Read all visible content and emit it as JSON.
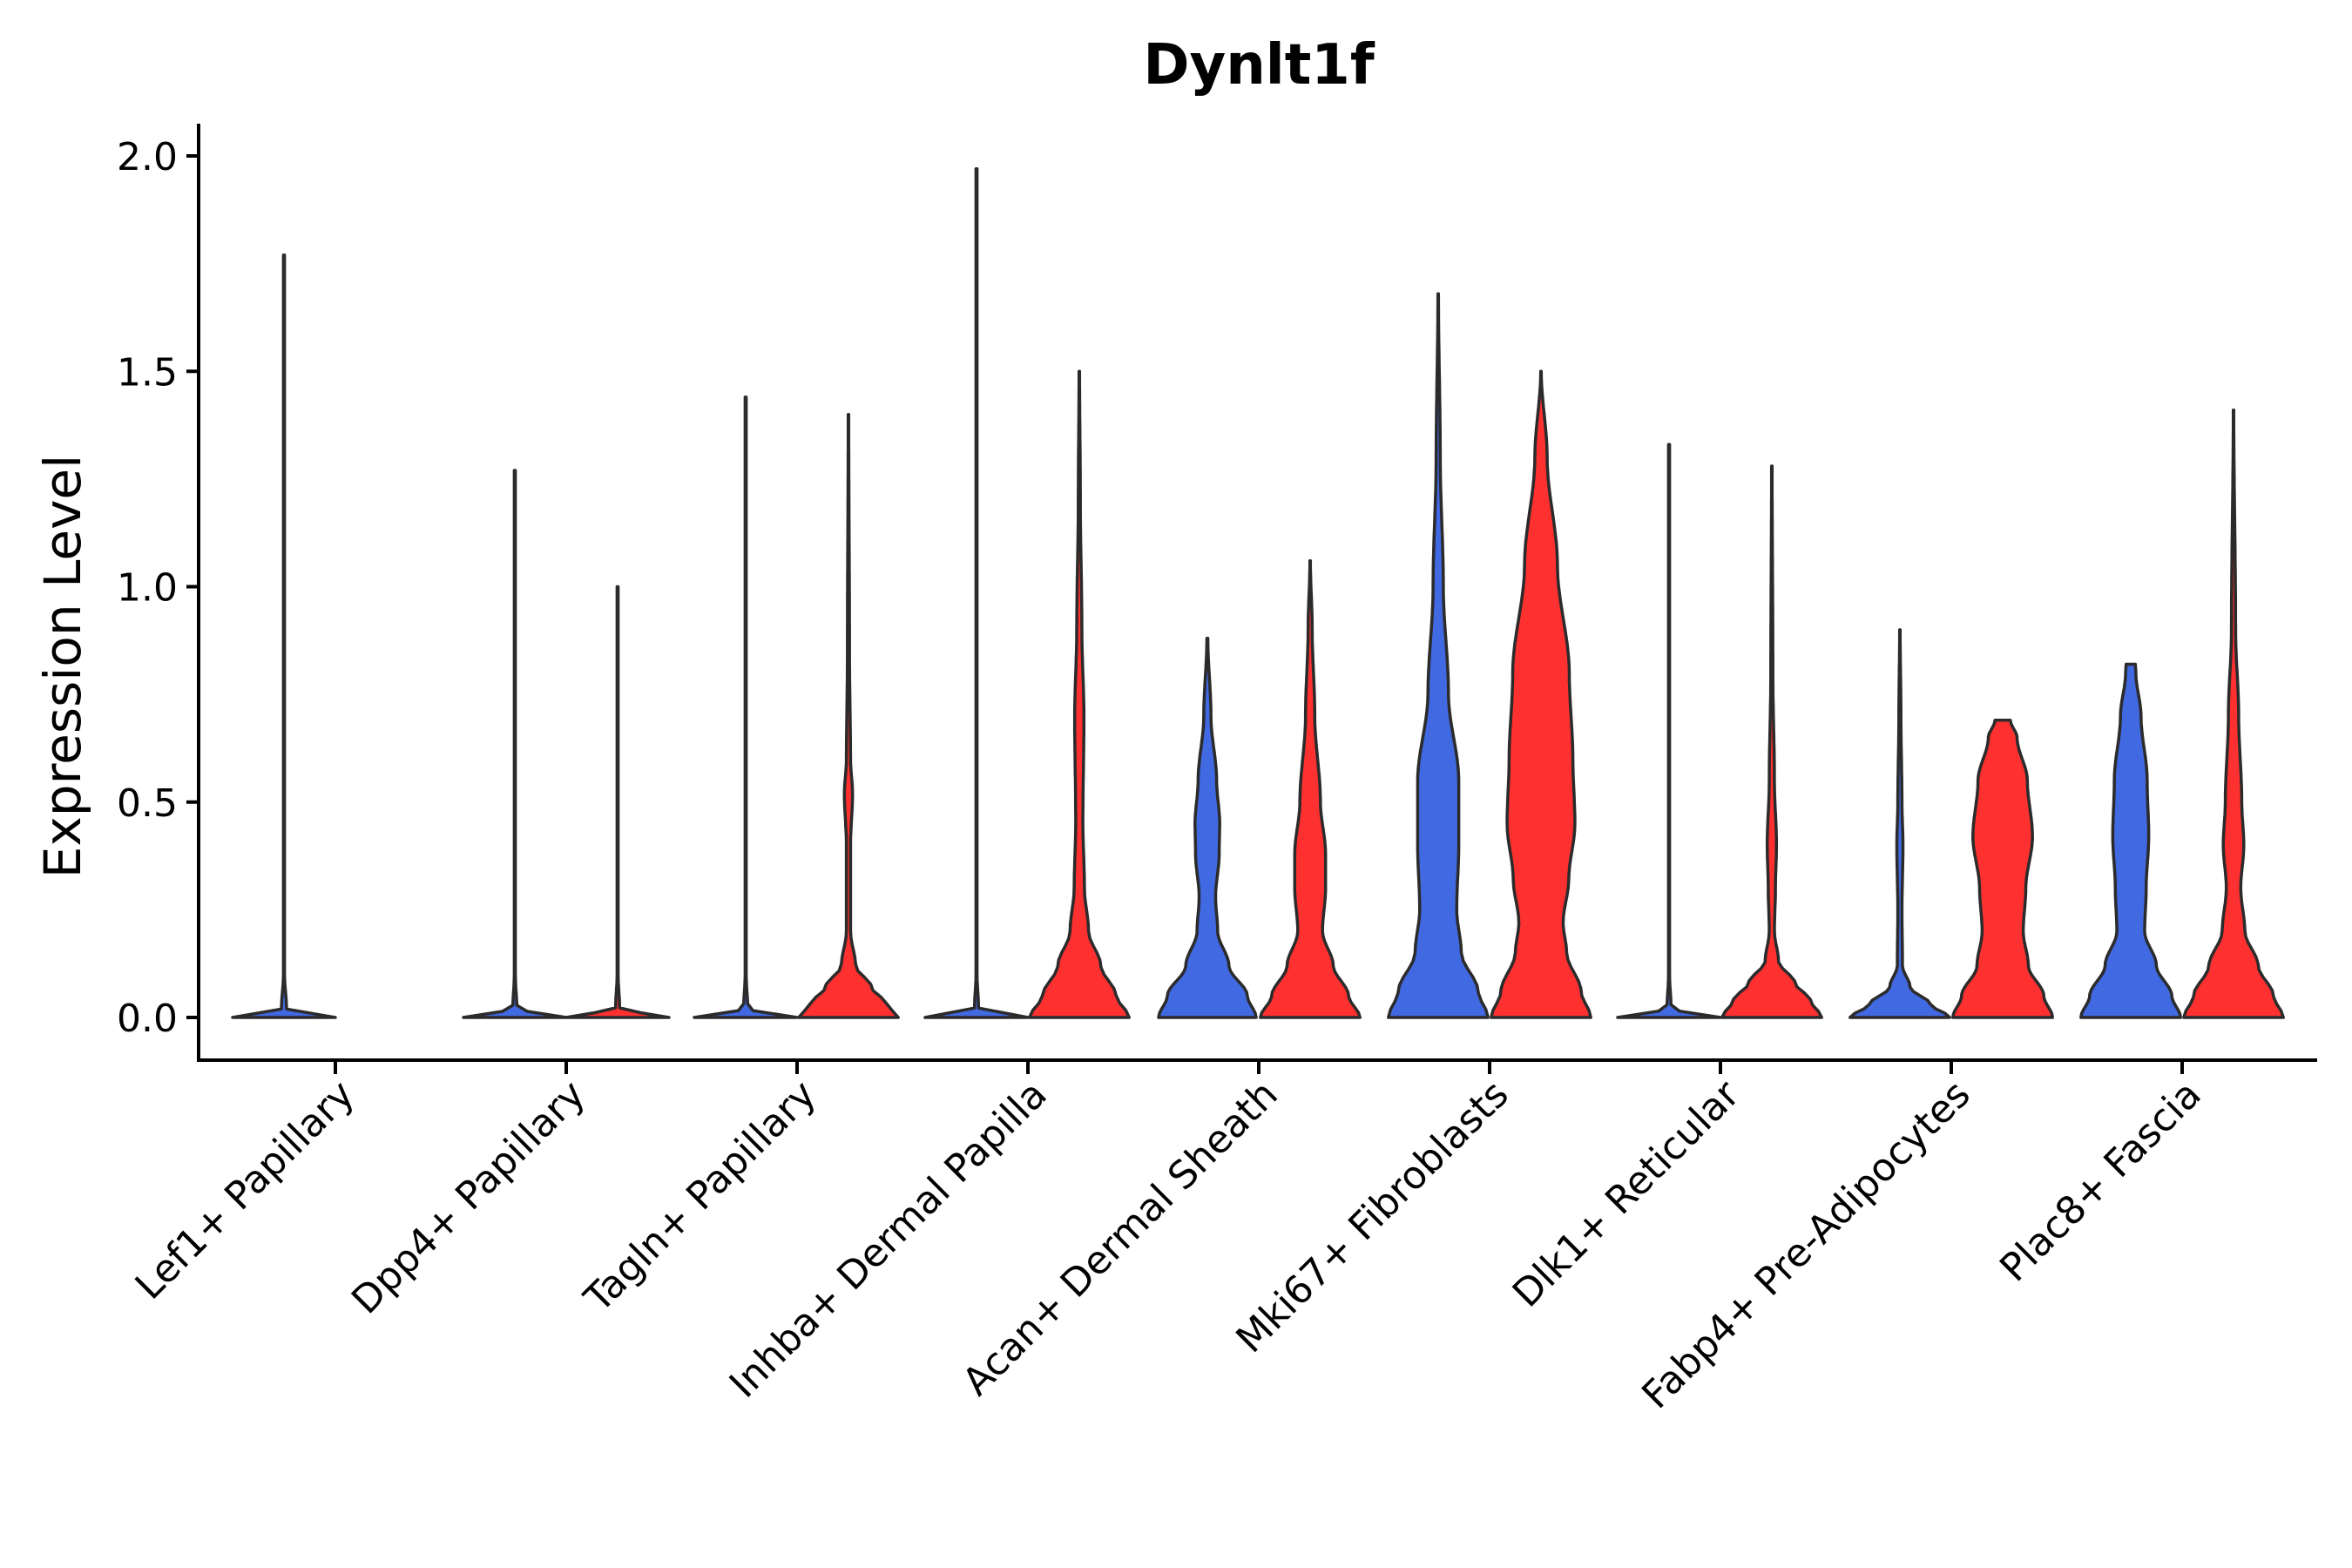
{
  "chart_data": {
    "type": "violin",
    "title": "Dynlt1f",
    "xlabel": "",
    "ylabel": "Expression Level",
    "ylim": [
      -0.1,
      2.08
    ],
    "yticks": [
      0.0,
      0.5,
      1.0,
      1.5,
      2.0
    ],
    "ytick_labels": [
      "0.0",
      "0.5",
      "1.0",
      "1.5",
      "2.0"
    ],
    "categories": [
      "Lef1+ Papillary",
      "Dpp4+ Papillary",
      "Tagln+ Papillary",
      "Inhba+ Dermal Papilla",
      "Acan+ Dermal Sheath",
      "Mki67+ Fibroblasts",
      "Dlk1+ Reticular",
      "Fabp4+ Pre-Adipocytes",
      "Plac8+ Fascia"
    ],
    "series": [
      {
        "name": "group1",
        "color": "#4169E1",
        "violins": [
          {
            "max": 1.77,
            "profile": [
              [
                0,
                1.0
              ],
              [
                0.02,
                0.05
              ],
              [
                0.1,
                0.01
              ],
              [
                1.77,
                0.01
              ]
            ]
          },
          {
            "max": 1.27,
            "profile": [
              [
                0,
                1.0
              ],
              [
                0.02,
                0.04
              ],
              [
                0.1,
                0.01
              ],
              [
                1.27,
                0.01
              ]
            ]
          },
          {
            "max": 1.44,
            "profile": [
              [
                0,
                1.0
              ],
              [
                0.02,
                0.04
              ],
              [
                0.1,
                0.01
              ],
              [
                1.44,
                0.01
              ]
            ]
          },
          {
            "max": 1.97,
            "profile": [
              [
                0,
                1.0
              ],
              [
                0.02,
                0.04
              ],
              [
                0.1,
                0.01
              ],
              [
                1.97,
                0.01
              ]
            ]
          },
          {
            "max": 0.88,
            "profile": [
              [
                0,
                0.95
              ],
              [
                0.05,
                0.78
              ],
              [
                0.12,
                0.42
              ],
              [
                0.2,
                0.2
              ],
              [
                0.28,
                0.16
              ],
              [
                0.38,
                0.23
              ],
              [
                0.45,
                0.24
              ],
              [
                0.55,
                0.18
              ],
              [
                0.7,
                0.07
              ],
              [
                0.88,
                0.01
              ]
            ]
          },
          {
            "max": 1.68,
            "profile": [
              [
                0,
                0.97
              ],
              [
                0.06,
                0.78
              ],
              [
                0.15,
                0.45
              ],
              [
                0.25,
                0.36
              ],
              [
                0.4,
                0.4
              ],
              [
                0.55,
                0.4
              ],
              [
                0.75,
                0.2
              ],
              [
                1.0,
                0.1
              ],
              [
                1.3,
                0.04
              ],
              [
                1.68,
                0.005
              ]
            ]
          },
          {
            "max": 1.33,
            "profile": [
              [
                0,
                1.0
              ],
              [
                0.02,
                0.04
              ],
              [
                0.1,
                0.01
              ],
              [
                1.33,
                0.01
              ]
            ]
          },
          {
            "max": 0.9,
            "profile": [
              [
                0,
                0.97
              ],
              [
                0.03,
                0.6
              ],
              [
                0.07,
                0.2
              ],
              [
                0.12,
                0.05
              ],
              [
                0.25,
                0.04
              ],
              [
                0.4,
                0.06
              ],
              [
                0.5,
                0.04
              ],
              [
                0.7,
                0.02
              ],
              [
                0.9,
                0.005
              ]
            ]
          },
          {
            "max": 0.82,
            "profile": [
              [
                0,
                0.97
              ],
              [
                0.05,
                0.8
              ],
              [
                0.12,
                0.5
              ],
              [
                0.2,
                0.27
              ],
              [
                0.3,
                0.3
              ],
              [
                0.42,
                0.35
              ],
              [
                0.55,
                0.32
              ],
              [
                0.7,
                0.2
              ],
              [
                0.8,
                0.1
              ],
              [
                0.82,
                0.09
              ]
            ]
          }
        ]
      },
      {
        "name": "group2",
        "color": "#FF3030",
        "violins": [
          null,
          {
            "max": 1.0,
            "profile": [
              [
                0,
                1.0
              ],
              [
                0.02,
                0.04
              ],
              [
                0.1,
                0.01
              ],
              [
                1.0,
                0.01
              ]
            ]
          },
          {
            "max": 1.4,
            "profile": [
              [
                0,
                0.97
              ],
              [
                0.03,
                0.75
              ],
              [
                0.07,
                0.45
              ],
              [
                0.12,
                0.14
              ],
              [
                0.2,
                0.04
              ],
              [
                0.4,
                0.04
              ],
              [
                0.52,
                0.08
              ],
              [
                0.6,
                0.04
              ],
              [
                0.85,
                0.02
              ],
              [
                1.4,
                0.005
              ]
            ]
          },
          {
            "max": 1.5,
            "profile": [
              [
                0,
                0.97
              ],
              [
                0.05,
                0.72
              ],
              [
                0.12,
                0.42
              ],
              [
                0.2,
                0.18
              ],
              [
                0.3,
                0.1
              ],
              [
                0.45,
                0.07
              ],
              [
                0.7,
                0.09
              ],
              [
                0.9,
                0.05
              ],
              [
                1.2,
                0.02
              ],
              [
                1.5,
                0.005
              ]
            ]
          },
          {
            "max": 1.06,
            "profile": [
              [
                0,
                0.97
              ],
              [
                0.05,
                0.75
              ],
              [
                0.12,
                0.45
              ],
              [
                0.2,
                0.24
              ],
              [
                0.3,
                0.3
              ],
              [
                0.38,
                0.3
              ],
              [
                0.5,
                0.2
              ],
              [
                0.7,
                0.09
              ],
              [
                0.9,
                0.04
              ],
              [
                1.06,
                0.005
              ]
            ]
          },
          {
            "max": 1.5,
            "profile": [
              [
                0,
                0.97
              ],
              [
                0.06,
                0.78
              ],
              [
                0.15,
                0.5
              ],
              [
                0.22,
                0.43
              ],
              [
                0.32,
                0.54
              ],
              [
                0.45,
                0.66
              ],
              [
                0.6,
                0.62
              ],
              [
                0.8,
                0.55
              ],
              [
                1.05,
                0.32
              ],
              [
                1.3,
                0.12
              ],
              [
                1.5,
                0.005
              ]
            ]
          },
          {
            "max": 1.28,
            "profile": [
              [
                0,
                0.97
              ],
              [
                0.04,
                0.75
              ],
              [
                0.08,
                0.45
              ],
              [
                0.13,
                0.13
              ],
              [
                0.2,
                0.05
              ],
              [
                0.3,
                0.07
              ],
              [
                0.4,
                0.09
              ],
              [
                0.55,
                0.05
              ],
              [
                0.8,
                0.02
              ],
              [
                1.28,
                0.005
              ]
            ]
          },
          {
            "max": 0.69,
            "profile": [
              [
                0,
                0.97
              ],
              [
                0.05,
                0.8
              ],
              [
                0.12,
                0.5
              ],
              [
                0.2,
                0.4
              ],
              [
                0.3,
                0.45
              ],
              [
                0.42,
                0.58
              ],
              [
                0.55,
                0.48
              ],
              [
                0.65,
                0.28
              ],
              [
                0.69,
                0.15
              ]
            ]
          },
          {
            "max": 1.41,
            "profile": [
              [
                0,
                0.97
              ],
              [
                0.05,
                0.78
              ],
              [
                0.12,
                0.48
              ],
              [
                0.2,
                0.22
              ],
              [
                0.3,
                0.14
              ],
              [
                0.4,
                0.2
              ],
              [
                0.5,
                0.16
              ],
              [
                0.7,
                0.1
              ],
              [
                0.9,
                0.04
              ],
              [
                1.41,
                0.005
              ]
            ]
          }
        ]
      }
    ]
  }
}
